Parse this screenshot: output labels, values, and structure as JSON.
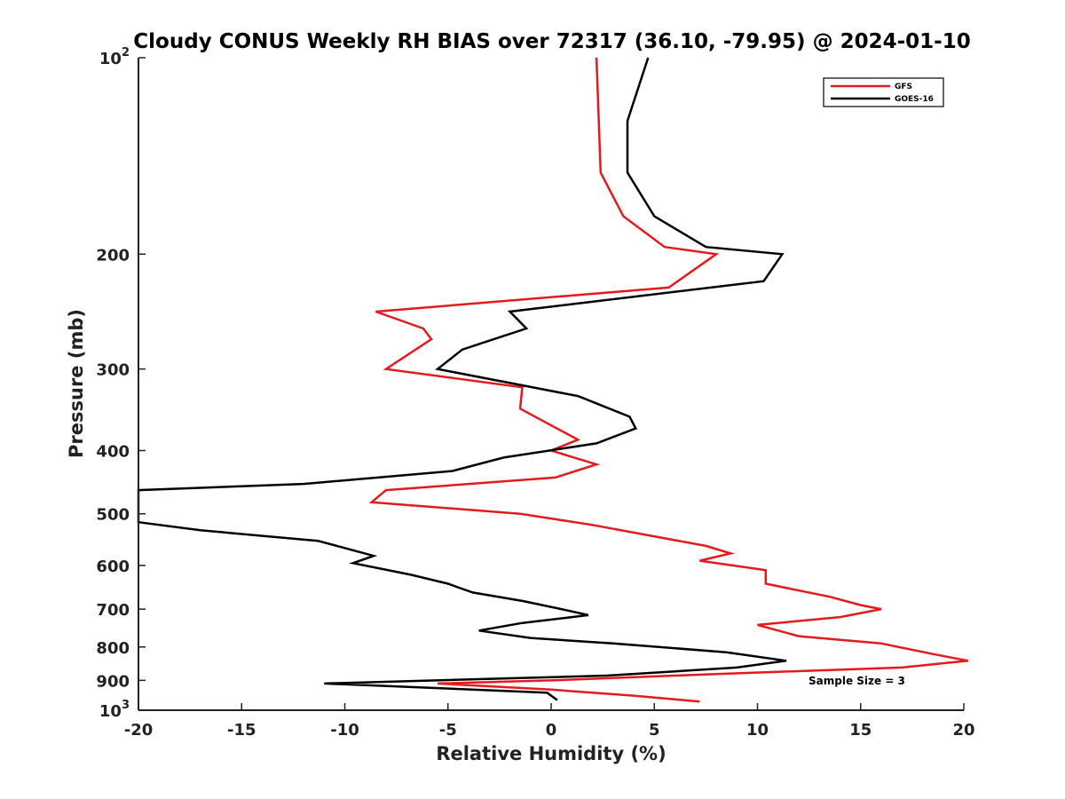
{
  "chart_data": {
    "type": "line",
    "title": "Cloudy CONUS Weekly RH BIAS over 72317 (36.10, -79.95) @ 2024-01-10",
    "xlabel": "Relative Humidity (%)",
    "ylabel": "Pressure (mb)",
    "xlim": [
      -20,
      20
    ],
    "ylim": [
      1000,
      100
    ],
    "y_scale": "log",
    "y_reversed": true,
    "grid": false,
    "legend_position": "top-right",
    "x_ticks": [
      {
        "value": -20,
        "label": "-20"
      },
      {
        "value": -15,
        "label": "-15"
      },
      {
        "value": -10,
        "label": "-10"
      },
      {
        "value": -5,
        "label": "-5"
      },
      {
        "value": 0,
        "label": "0"
      },
      {
        "value": 5,
        "label": "5"
      },
      {
        "value": 10,
        "label": "10"
      },
      {
        "value": 15,
        "label": "15"
      },
      {
        "value": 20,
        "label": "20"
      }
    ],
    "y_ticks": [
      {
        "value": 100,
        "base": "10",
        "exp": "2"
      },
      {
        "value": 200,
        "base": "200",
        "exp": ""
      },
      {
        "value": 300,
        "base": "300",
        "exp": ""
      },
      {
        "value": 400,
        "base": "400",
        "exp": ""
      },
      {
        "value": 500,
        "base": "500",
        "exp": ""
      },
      {
        "value": 600,
        "base": "600",
        "exp": ""
      },
      {
        "value": 700,
        "base": "700",
        "exp": ""
      },
      {
        "value": 800,
        "base": "800",
        "exp": ""
      },
      {
        "value": 900,
        "base": "900",
        "exp": ""
      },
      {
        "value": 1000,
        "base": "10",
        "exp": "3"
      }
    ],
    "series": [
      {
        "name": "GFS",
        "color": "#e41a1c",
        "points": [
          [
            2.2,
            100
          ],
          [
            2.4,
            150
          ],
          [
            3.5,
            175
          ],
          [
            5.5,
            195
          ],
          [
            8.0,
            200
          ],
          [
            5.7,
            225
          ],
          [
            -8.5,
            245
          ],
          [
            -6.2,
            260
          ],
          [
            -5.8,
            270
          ],
          [
            -8.0,
            300
          ],
          [
            -1.4,
            320
          ],
          [
            -1.5,
            345
          ],
          [
            1.3,
            385
          ],
          [
            0.0,
            400
          ],
          [
            2.2,
            420
          ],
          [
            0.2,
            440
          ],
          [
            -8.0,
            460
          ],
          [
            -8.7,
            480
          ],
          [
            -1.5,
            500
          ],
          [
            2.0,
            520
          ],
          [
            7.5,
            560
          ],
          [
            8.7,
            575
          ],
          [
            7.2,
            590
          ],
          [
            10.4,
            610
          ],
          [
            10.4,
            640
          ],
          [
            13.5,
            670
          ],
          [
            15.0,
            690
          ],
          [
            16.0,
            700
          ],
          [
            14.0,
            720
          ],
          [
            10.0,
            740
          ],
          [
            12.0,
            770
          ],
          [
            16.0,
            790
          ],
          [
            18.5,
            820
          ],
          [
            20.2,
            840
          ],
          [
            17.0,
            860
          ],
          [
            8.0,
            880
          ],
          [
            0.0,
            900
          ],
          [
            -5.5,
            910
          ],
          [
            0.0,
            930
          ],
          [
            4.0,
            950
          ],
          [
            7.2,
            970
          ]
        ]
      },
      {
        "name": "GOES-16",
        "color": "#000000",
        "points": [
          [
            4.7,
            100
          ],
          [
            3.7,
            125
          ],
          [
            3.7,
            150
          ],
          [
            5.0,
            175
          ],
          [
            7.5,
            195
          ],
          [
            11.2,
            200
          ],
          [
            10.3,
            220
          ],
          [
            -2.0,
            245
          ],
          [
            -1.2,
            260
          ],
          [
            -4.3,
            280
          ],
          [
            -5.5,
            300
          ],
          [
            1.3,
            330
          ],
          [
            3.8,
            355
          ],
          [
            4.1,
            370
          ],
          [
            2.2,
            390
          ],
          [
            -2.3,
            410
          ],
          [
            -4.8,
            430
          ],
          [
            -12.0,
            450
          ],
          [
            -20.0,
            460
          ],
          [
            -20.0,
            515
          ],
          [
            -17.0,
            530
          ],
          [
            -11.3,
            550
          ],
          [
            -8.6,
            580
          ],
          [
            -9.6,
            595
          ],
          [
            -6.8,
            620
          ],
          [
            -5.0,
            640
          ],
          [
            -3.8,
            660
          ],
          [
            -1.4,
            680
          ],
          [
            0.5,
            700
          ],
          [
            1.8,
            715
          ],
          [
            -1.4,
            735
          ],
          [
            -3.5,
            755
          ],
          [
            -1.0,
            775
          ],
          [
            3.0,
            790
          ],
          [
            8.5,
            815
          ],
          [
            11.4,
            840
          ],
          [
            9.0,
            860
          ],
          [
            2.7,
            885
          ],
          [
            -11.0,
            910
          ],
          [
            -0.2,
            940
          ],
          [
            0.3,
            965
          ]
        ]
      }
    ],
    "annotations": [
      {
        "text": "Sample Size = 3",
        "position": "lower-right"
      }
    ]
  }
}
